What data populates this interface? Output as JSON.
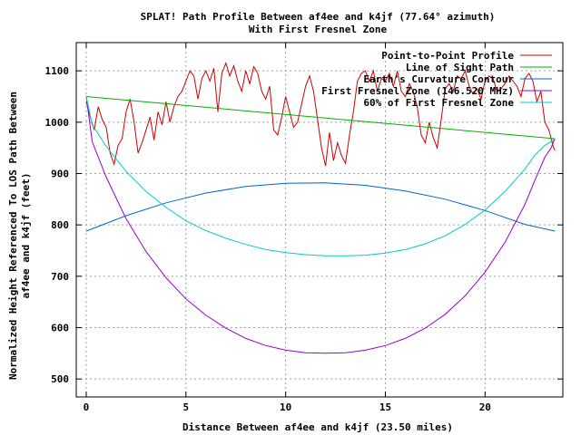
{
  "chart_data": {
    "type": "line",
    "title": "SPLAT! Path Profile Between af4ee and k4jf (77.64° azimuth)",
    "subtitle": "With First Fresnel Zone",
    "xlabel": "Distance Between af4ee and k4jf (23.50 miles)",
    "ylabel_line1": "Normalized Height Referenced To LOS Path Between",
    "ylabel_line2": "af4ee and k4jf (feet)",
    "xlim": [
      -0.5,
      23.9
    ],
    "ylim": [
      465,
      1155
    ],
    "x_ticks": [
      0,
      5,
      10,
      15,
      20
    ],
    "y_ticks": [
      500,
      600,
      700,
      800,
      900,
      1000,
      1100
    ],
    "x_tick_labels": [
      "0",
      "5",
      "10",
      "15",
      "20"
    ],
    "y_tick_labels": [
      "500",
      "600",
      "700",
      "800",
      "900",
      "1000",
      "1100"
    ],
    "grid": true,
    "legend_position": "top-right",
    "series": [
      {
        "name": "Point-to-Point Profile",
        "color": "#cc0000",
        "x": [
          0,
          0.2,
          0.4,
          0.6,
          0.8,
          1.0,
          1.2,
          1.4,
          1.6,
          1.8,
          2.0,
          2.2,
          2.4,
          2.6,
          2.8,
          3.0,
          3.2,
          3.4,
          3.6,
          3.8,
          4.0,
          4.2,
          4.4,
          4.6,
          4.8,
          5.0,
          5.2,
          5.4,
          5.6,
          5.8,
          6.0,
          6.2,
          6.4,
          6.6,
          6.8,
          7.0,
          7.2,
          7.4,
          7.6,
          7.8,
          8.0,
          8.2,
          8.4,
          8.6,
          8.8,
          9.0,
          9.2,
          9.4,
          9.6,
          9.8,
          10.0,
          10.2,
          10.4,
          10.6,
          10.8,
          11.0,
          11.2,
          11.4,
          11.6,
          11.8,
          12.0,
          12.2,
          12.4,
          12.6,
          12.8,
          13.0,
          13.2,
          13.4,
          13.6,
          13.8,
          14.0,
          14.2,
          14.4,
          14.6,
          14.8,
          15.0,
          15.2,
          15.4,
          15.6,
          15.8,
          16.0,
          16.2,
          16.4,
          16.6,
          16.8,
          17.0,
          17.2,
          17.4,
          17.6,
          17.8,
          18.0,
          18.2,
          18.4,
          18.6,
          18.8,
          19.0,
          19.2,
          19.4,
          19.6,
          19.8,
          20.0,
          20.2,
          20.4,
          20.6,
          20.8,
          21.0,
          21.2,
          21.4,
          21.6,
          21.8,
          22.0,
          22.2,
          22.4,
          22.6,
          22.8,
          23.0,
          23.2,
          23.4,
          23.5
        ],
        "y": [
          1040,
          1010,
          985,
          1030,
          1005,
          990,
          940,
          918,
          955,
          968,
          1020,
          1045,
          1000,
          940,
          960,
          985,
          1010,
          965,
          1020,
          995,
          1040,
          1000,
          1030,
          1050,
          1060,
          1080,
          1100,
          1090,
          1045,
          1085,
          1100,
          1080,
          1105,
          1020,
          1095,
          1115,
          1090,
          1110,
          1080,
          1060,
          1100,
          1075,
          1108,
          1095,
          1060,
          1045,
          1070,
          985,
          975,
          1010,
          1050,
          1020,
          990,
          1000,
          1035,
          1070,
          1090,
          1060,
          1005,
          950,
          915,
          980,
          925,
          960,
          935,
          920,
          975,
          1020,
          1080,
          1095,
          1100,
          1080,
          1100,
          1060,
          1085,
          1080,
          1095,
          1070,
          1100,
          1060,
          1050,
          1075,
          1060,
          1030,
          975,
          960,
          1000,
          970,
          950,
          1005,
          1065,
          1075,
          1060,
          1090,
          1085,
          1100,
          1070,
          1055,
          1065,
          1045,
          1080,
          1090,
          1085,
          1060,
          1065,
          1075,
          1090,
          1080,
          1070,
          1050,
          1085,
          1095,
          1080,
          1040,
          1060,
          1000,
          985,
          955,
          945
        ]
      },
      {
        "name": "Line of Sight Path",
        "color": "#00b000",
        "x": [
          0,
          23.5
        ],
        "y": [
          1050,
          968
        ]
      },
      {
        "name": "Earth's Curvature Contour",
        "color": "#0066cc",
        "x": [
          0,
          2,
          4,
          6,
          8,
          10,
          12,
          14,
          16,
          18,
          20,
          22,
          23.5
        ],
        "y": [
          788,
          818,
          843,
          862,
          875,
          881,
          882,
          877,
          866,
          850,
          828,
          801,
          788
        ]
      },
      {
        "name": "First Fresnel Zone (146.520 MHz)",
        "color": "#9900cc",
        "x": [
          0,
          0.3,
          1,
          2,
          3,
          4,
          5,
          6,
          7,
          8,
          9,
          10,
          11,
          12,
          13,
          14,
          15,
          16,
          17,
          18,
          19,
          20,
          21,
          22,
          22.5,
          23,
          23.3,
          23.5
        ],
        "y": [
          1050,
          962,
          893,
          812,
          748,
          697,
          656,
          624,
          599,
          579,
          565,
          556,
          551,
          550,
          551,
          556,
          565,
          579,
          599,
          626,
          662,
          708,
          766,
          840,
          887,
          932,
          949,
          968
        ]
      },
      {
        "name": "60% of First Fresnel Zone",
        "color": "#00cccc",
        "x": [
          0,
          0.3,
          1,
          2,
          3,
          4,
          5,
          6,
          7,
          8,
          9,
          10,
          11,
          12,
          13,
          14,
          15,
          16,
          17,
          18,
          19,
          20,
          21,
          22,
          22.5,
          23,
          23.3,
          23.5
        ],
        "y": [
          1050,
          995,
          953,
          904,
          865,
          834,
          808,
          789,
          774,
          762,
          752,
          746,
          742,
          740,
          740,
          741,
          745,
          752,
          763,
          779,
          801,
          829,
          865,
          909,
          936,
          955,
          962,
          968
        ]
      }
    ]
  }
}
